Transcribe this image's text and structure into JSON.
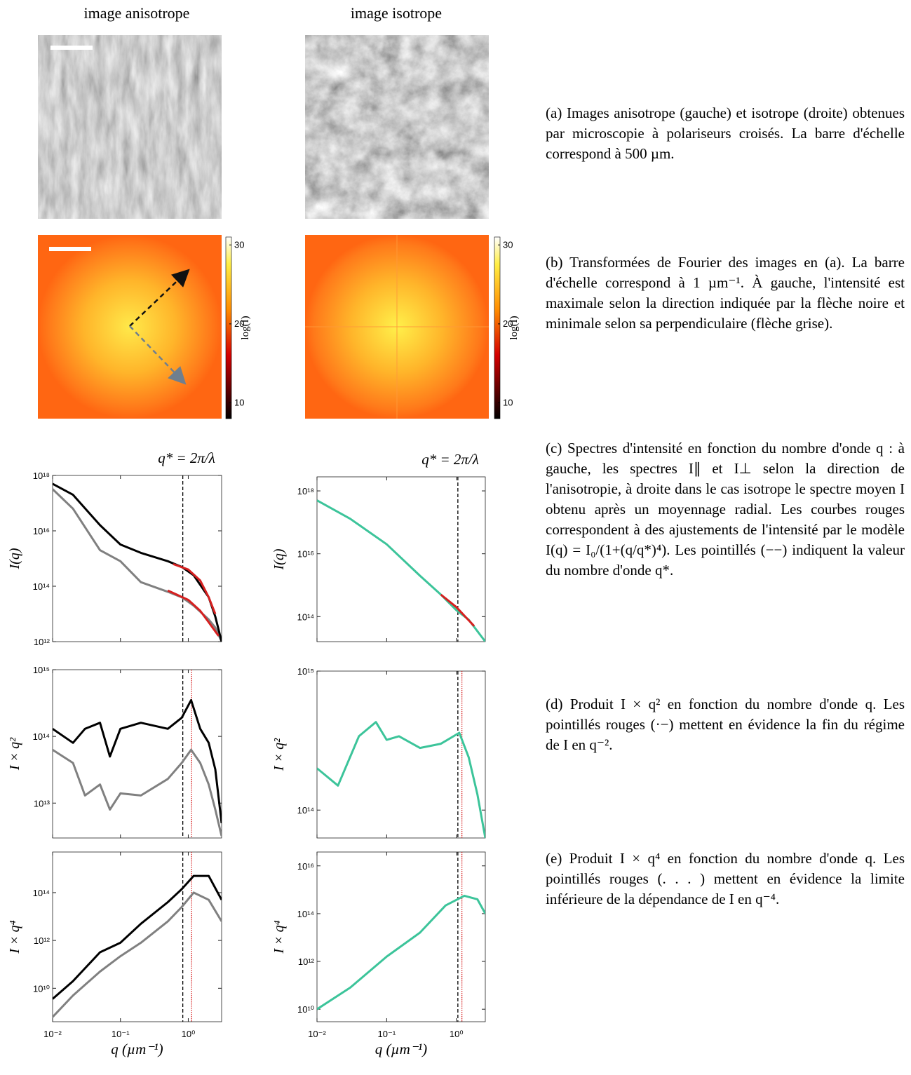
{
  "columns": [
    "image anisotrope",
    "image isotrope"
  ],
  "colorbars": [
    {
      "label": "log(I)",
      "lim": [
        8,
        31
      ],
      "ticks": [
        10,
        20,
        30
      ]
    },
    {
      "label": "log(I)",
      "lim": [
        8,
        31
      ],
      "ticks": [
        10,
        20,
        30
      ]
    }
  ],
  "captions": [
    "(a) Images anisotrope (gauche) et isotrope (droite) obtenues par microscopie à polariseurs croisés. La barre d'échelle correspond à 500 µm.",
    "(b) Transformées de Fourier des images en (a). La barre d'échelle correspond à 1 µm⁻¹. À gauche, l'intensité est maximale selon la direction indiquée par la flèche noire et minimale selon sa perpendiculaire (flèche grise).",
    "(c) Spectres d'intensité en fonction du nombre d'onde q : à gauche, les spectres I∥ et I⊥ selon la direction de l'anisotropie, à droite dans le cas isotrope le spectre moyen I obtenu après un moyennage radial. Les courbes rouges correspondent à des ajustements de l'intensité par le modèle I(q) = I₀/(1+(q/q*)⁴). Les pointillés (−−) indiquent la valeur du nombre d'onde q*.",
    "(d) Produit I × q² en fonction du nombre d'onde q. Les pointillés rouges (·−) mettent en évidence la fin du régime de I en q⁻².",
    "(e) Produit I × q⁴ en fonction du nombre d'onde q. Les pointillés rouges (. . . ) mettent en évidence la limite inférieure de la dépendance de I en q⁻⁴."
  ],
  "chart_data": [
    {
      "type": "line",
      "title": "q* = 2π/λ",
      "ylabel": "I(q)",
      "log_x": true,
      "log_y": true,
      "xlim": [
        0.01,
        3.1
      ],
      "ylim": [
        1000000000000.0,
        1e+18
      ],
      "xticks": [
        0.01,
        0.1,
        1
      ],
      "yticks": [
        {
          "value": 1000000000000.0,
          "label": "10¹²"
        },
        {
          "value": 100000000000000.0,
          "label": "10¹⁴"
        },
        {
          "value": 1e+16,
          "label": "10¹⁶"
        },
        {
          "value": 1e+18,
          "label": "10¹⁸"
        }
      ],
      "vlines": [
        {
          "value": 0.83,
          "color": "#000000",
          "style": "dashed"
        }
      ],
      "series": [
        {
          "color": "#808080",
          "x": [
            0.01,
            0.02,
            0.05,
            0.1,
            0.2,
            0.5,
            0.8,
            1.2,
            2,
            2.5,
            3.1
          ],
          "values": [
            3.2e+17,
            6.3e+16,
            2000000000000000.0,
            800000000000000.0,
            140000000000000.0,
            63000000000000.0,
            40000000000000.0,
            20000000000000.0,
            6300000000000.0,
            3200000000000.0,
            1000000000000.0
          ]
        },
        {
          "color": "#000000",
          "x": [
            0.01,
            0.02,
            0.05,
            0.1,
            0.2,
            0.5,
            0.8,
            1.2,
            2,
            2.5,
            3.1
          ],
          "values": [
            5e+17,
            2e+17,
            1.6e+16,
            3200000000000000.0,
            1600000000000000.0,
            800000000000000.0,
            500000000000000.0,
            250000000000000.0,
            40000000000000.0,
            8000000000000.0,
            1000000000000.0
          ]
        },
        {
          "color": "#d62020",
          "x": [
            0.6,
            1,
            1.5,
            2,
            2.5
          ],
          "values": [
            630000000000000.0,
            400000000000000.0,
            160000000000000.0,
            40000000000000.0,
            10000000000000.0
          ]
        },
        {
          "color": "#d62020",
          "x": [
            0.5,
            1,
            1.5,
            2,
            2.8
          ],
          "values": [
            70000000000000.0,
            32000000000000.0,
            13000000000000.0,
            5000000000000.0,
            1600000000000.0
          ]
        }
      ]
    },
    {
      "type": "line",
      "title": "q* = 2π/λ",
      "ylabel": "I(q)",
      "log_x": true,
      "log_y": true,
      "xlim": [
        0.01,
        2.6
      ],
      "ylim": [
        16000000000000.0,
        2.8e+18
      ],
      "xticks": [
        0.01,
        0.1,
        1
      ],
      "yticks": [
        {
          "value": 100000000000000.0,
          "label": "10¹⁴"
        },
        {
          "value": 1e+16,
          "label": "10¹⁶"
        },
        {
          "value": 1e+18,
          "label": "10¹⁸"
        }
      ],
      "vlines": [
        {
          "value": 1.05,
          "color": "#000000",
          "style": "dashed"
        }
      ],
      "series": [
        {
          "color": "#3cc49a",
          "x": [
            0.01,
            0.03,
            0.1,
            0.3,
            0.6,
            1,
            1.5,
            2.6
          ],
          "values": [
            5e+17,
            1.3e+17,
            2e+16,
            2000000000000000.0,
            500000000000000.0,
            160000000000000.0,
            80000000000000.0,
            16000000000000.0
          ]
        },
        {
          "color": "#d62020",
          "x": [
            0.6,
            1,
            1.4,
            1.8
          ],
          "values": [
            500000000000000.0,
            200000000000000.0,
            90000000000000.0,
            50000000000000.0
          ]
        }
      ]
    },
    {
      "type": "line",
      "ylabel": "I × q²",
      "log_x": true,
      "log_y": true,
      "xlim": [
        0.01,
        3.1
      ],
      "ylim": [
        3000000000000.0,
        1000000000000000.0
      ],
      "xticks": [
        0.01,
        0.1,
        1
      ],
      "yticks": [
        {
          "value": 10000000000000.0,
          "label": "10¹³"
        },
        {
          "value": 100000000000000.0,
          "label": "10¹⁴"
        },
        {
          "value": 1000000000000000.0,
          "label": "10¹⁵"
        }
      ],
      "vlines": [
        {
          "value": 0.83,
          "color": "#000000",
          "style": "dashed"
        },
        {
          "value": 1.12,
          "color": "#d62020",
          "style": "dotted"
        }
      ],
      "series": [
        {
          "color": "#808080",
          "x": [
            0.01,
            0.02,
            0.03,
            0.05,
            0.07,
            0.1,
            0.2,
            0.5,
            0.8,
            1.1,
            1.5,
            2,
            2.5,
            3.1
          ],
          "values": [
            63000000000000.0,
            40000000000000.0,
            13000000000000.0,
            19000000000000.0,
            8000000000000.0,
            14000000000000.0,
            13000000000000.0,
            23000000000000.0,
            40000000000000.0,
            63000000000000.0,
            40000000000000.0,
            19000000000000.0,
            8000000000000.0,
            3200000000000.0
          ]
        },
        {
          "color": "#000000",
          "x": [
            0.01,
            0.02,
            0.03,
            0.05,
            0.07,
            0.1,
            0.2,
            0.5,
            0.8,
            1.1,
            1.5,
            2,
            2.5,
            3.1
          ],
          "values": [
            130000000000000.0,
            80000000000000.0,
            130000000000000.0,
            160000000000000.0,
            50000000000000.0,
            130000000000000.0,
            160000000000000.0,
            130000000000000.0,
            190000000000000.0,
            350000000000000.0,
            130000000000000.0,
            80000000000000.0,
            32000000000000.0,
            5000000000000.0
          ]
        }
      ]
    },
    {
      "type": "line",
      "ylabel": "I × q²",
      "log_x": true,
      "log_y": true,
      "xlim": [
        0.01,
        2.6
      ],
      "ylim": [
        63000000000000.0,
        1000000000000000.0
      ],
      "xticks": [
        0.01,
        0.1,
        1
      ],
      "yticks": [
        {
          "value": 100000000000000.0,
          "label": "10¹⁴"
        },
        {
          "value": 1000000000000000.0,
          "label": "10¹⁵"
        }
      ],
      "vlines": [
        {
          "value": 1.05,
          "color": "#000000",
          "style": "dashed"
        },
        {
          "value": 1.2,
          "color": "#d62020",
          "style": "dotted"
        }
      ],
      "series": [
        {
          "color": "#3cc49a",
          "x": [
            0.01,
            0.02,
            0.04,
            0.07,
            0.1,
            0.15,
            0.3,
            0.6,
            1.1,
            1.5,
            2,
            2.6
          ],
          "values": [
            200000000000000.0,
            150000000000000.0,
            340000000000000.0,
            430000000000000.0,
            320000000000000.0,
            340000000000000.0,
            280000000000000.0,
            300000000000000.0,
            360000000000000.0,
            240000000000000.0,
            130000000000000.0,
            63000000000000.0
          ]
        }
      ]
    },
    {
      "type": "line",
      "ylabel": "I × q⁴",
      "xlabel": "q (µm⁻¹)",
      "log_x": true,
      "log_y": true,
      "xlim": [
        0.01,
        3.1
      ],
      "ylim": [
        400000000.0,
        5000000000000000.0
      ],
      "xticks": [
        {
          "value": 0.01,
          "label": "10⁻²"
        },
        {
          "value": 0.1,
          "label": "10⁻¹"
        },
        {
          "value": 1,
          "label": "10⁰"
        }
      ],
      "yticks": [
        {
          "value": 10000000000.0,
          "label": "10¹⁰"
        },
        {
          "value": 1000000000000.0,
          "label": "10¹²"
        },
        {
          "value": 100000000000000.0,
          "label": "10¹⁴"
        }
      ],
      "vlines": [
        {
          "value": 0.83,
          "color": "#000000",
          "style": "dashed"
        },
        {
          "value": 1.12,
          "color": "#d62020",
          "style": "dotted"
        }
      ],
      "series": [
        {
          "color": "#808080",
          "x": [
            0.01,
            0.02,
            0.05,
            0.1,
            0.2,
            0.5,
            0.8,
            1.2,
            2,
            3.1
          ],
          "values": [
            630000000.0,
            5000000000.0,
            50000000000.0,
            220000000000.0,
            800000000000.0,
            6300000000000.0,
            25000000000000.0,
            100000000000000.0,
            50000000000000.0,
            6300000000000.0
          ]
        },
        {
          "color": "#000000",
          "x": [
            0.01,
            0.02,
            0.05,
            0.1,
            0.2,
            0.5,
            0.8,
            1.2,
            2,
            3.1
          ],
          "values": [
            3600000000.0,
            20000000000.0,
            320000000000.0,
            800000000000.0,
            5000000000000.0,
            40000000000000.0,
            140000000000000.0,
            500000000000000.0,
            500000000000000.0,
            50000000000000.0
          ]
        }
      ]
    },
    {
      "type": "line",
      "ylabel": "I × q⁴",
      "xlabel": "q (µm⁻¹)",
      "log_x": true,
      "log_y": true,
      "xlim": [
        0.01,
        2.6
      ],
      "ylim": [
        3000000000.0,
        3.8e+16
      ],
      "xticks": [
        {
          "value": 0.01,
          "label": "10⁻²"
        },
        {
          "value": 0.1,
          "label": "10⁻¹"
        },
        {
          "value": 1,
          "label": "10⁰"
        }
      ],
      "yticks": [
        {
          "value": 10000000000.0,
          "label": "10¹⁰"
        },
        {
          "value": 1000000000000.0,
          "label": "10¹²"
        },
        {
          "value": 100000000000000.0,
          "label": "10¹⁴"
        },
        {
          "value": 1e+16,
          "label": "10¹⁶"
        }
      ],
      "vlines": [
        {
          "value": 1.05,
          "color": "#000000",
          "style": "dashed"
        },
        {
          "value": 1.2,
          "color": "#d62020",
          "style": "dotted"
        }
      ],
      "series": [
        {
          "color": "#3cc49a",
          "x": [
            0.01,
            0.03,
            0.1,
            0.3,
            0.7,
            1.3,
            2,
            2.6
          ],
          "values": [
            10000000000.0,
            80000000000.0,
            1600000000000.0,
            16000000000000.0,
            220000000000000.0,
            560000000000000.0,
            400000000000000.0,
            100000000000000.0
          ]
        }
      ]
    }
  ]
}
